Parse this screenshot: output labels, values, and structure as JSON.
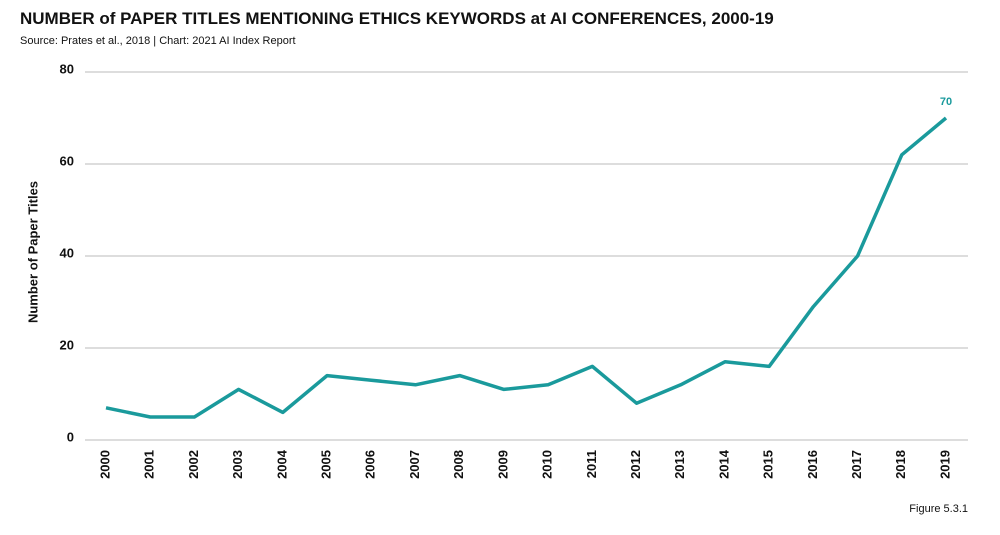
{
  "chart_data": {
    "type": "line",
    "title": "NUMBER of PAPER TITLES MENTIONING ETHICS KEYWORDS at AI CONFERENCES, 2000-19",
    "subtitle": "Source: Prates et al., 2018 | Chart: 2021 AI Index Report",
    "y_label": "Number of Paper Titles",
    "figure_label": "Figure 5.3.1",
    "categories": [
      "2000",
      "2001",
      "2002",
      "2003",
      "2004",
      "2005",
      "2006",
      "2007",
      "2008",
      "2009",
      "2010",
      "2011",
      "2012",
      "2013",
      "2014",
      "2015",
      "2016",
      "2017",
      "2018",
      "2019"
    ],
    "series": [
      {
        "name": "Number of Paper Titles",
        "color": "#1a9a9c",
        "values": [
          7,
          5,
          5,
          11,
          6,
          14,
          13,
          12,
          14,
          11,
          12,
          16,
          8,
          12,
          17,
          16,
          29,
          40,
          62,
          70
        ]
      }
    ],
    "labeled_points": [
      19
    ],
    "ylim": [
      0,
      80
    ],
    "yticks": [
      0,
      20,
      40,
      60,
      80
    ],
    "grid": true
  }
}
